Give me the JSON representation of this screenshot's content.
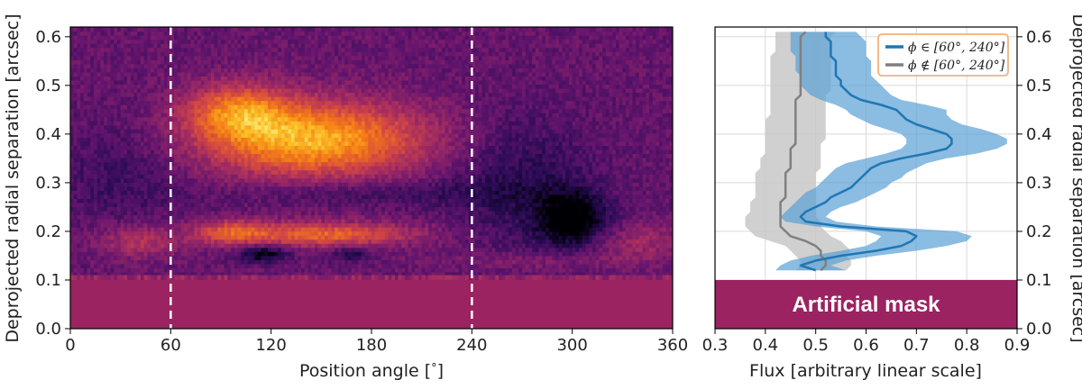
{
  "chart_data": [
    {
      "type": "heatmap",
      "title": "",
      "xlabel": "Position angle [$^\\circ$]",
      "xlabel_text": "Position angle [",
      "xlabel_unit": "°",
      "xlabel_close": "]",
      "ylabel": "Deprojected radial separation [arcsec]",
      "xlim": [
        0,
        360
      ],
      "ylim": [
        0,
        0.62
      ],
      "x_ticks": [
        "0",
        "60",
        "120",
        "180",
        "240",
        "300",
        "360"
      ],
      "y_ticks": [
        "0.0",
        "0.1",
        "0.2",
        "0.3",
        "0.4",
        "0.5",
        "0.6"
      ],
      "colormap": "inferno",
      "dashed_lines_at_x": [
        60,
        240
      ],
      "dashed_line_color": "#ffffff",
      "mask_below_y": 0.1,
      "features": [
        {
          "name": "bright_ring",
          "x_range": [
            60,
            240
          ],
          "y_center": 0.39,
          "intensity": 1.0
        },
        {
          "name": "inner_ring",
          "x_range": [
            60,
            240
          ],
          "y_center": 0.195,
          "intensity": 0.85
        },
        {
          "name": "dark_spot",
          "x_center": 300,
          "y_center": 0.225,
          "intensity": 0.0
        },
        {
          "name": "dark_spot",
          "x_center": 115,
          "y_center": 0.155,
          "intensity": 0.0
        }
      ]
    },
    {
      "type": "line",
      "title": "",
      "xlabel": "Flux [arbitrary linear scale]",
      "ylabel": "Deprojected radial separation [arcsec]",
      "ylabel_side": "right",
      "xlim": [
        0.3,
        0.9
      ],
      "ylim": [
        0,
        0.62
      ],
      "x_ticks": [
        "0.3",
        "0.4",
        "0.5",
        "0.6",
        "0.7",
        "0.8",
        "0.9"
      ],
      "y_ticks": [
        "0.0",
        "0.1",
        "0.2",
        "0.3",
        "0.4",
        "0.5",
        "0.6"
      ],
      "grid": true,
      "legend_position": "top-right",
      "legend_border_color": "#f4a460",
      "mask": {
        "label": "Artificial mask",
        "y_range": [
          0,
          0.1
        ],
        "color": "#9b2361"
      },
      "series": [
        {
          "name": "ϕ ∈ [60°, 240°]",
          "color": "#1f77b4",
          "band_color": "#5a9fd4",
          "y": [
            0.12,
            0.13,
            0.14,
            0.15,
            0.16,
            0.17,
            0.18,
            0.19,
            0.2,
            0.21,
            0.22,
            0.23,
            0.24,
            0.25,
            0.26,
            0.27,
            0.28,
            0.29,
            0.3,
            0.31,
            0.32,
            0.33,
            0.34,
            0.35,
            0.36,
            0.37,
            0.38,
            0.39,
            0.4,
            0.41,
            0.42,
            0.43,
            0.44,
            0.45,
            0.46,
            0.47,
            0.48,
            0.49,
            0.5,
            0.51,
            0.52,
            0.53,
            0.54,
            0.55,
            0.56,
            0.57,
            0.58,
            0.59,
            0.6,
            0.61
          ],
          "x": [
            0.5,
            0.47,
            0.5,
            0.55,
            0.62,
            0.67,
            0.69,
            0.7,
            0.68,
            0.55,
            0.48,
            0.47,
            0.48,
            0.5,
            0.52,
            0.53,
            0.55,
            0.57,
            0.58,
            0.59,
            0.6,
            0.61,
            0.63,
            0.67,
            0.72,
            0.76,
            0.77,
            0.77,
            0.76,
            0.73,
            0.7,
            0.68,
            0.67,
            0.66,
            0.63,
            0.59,
            0.57,
            0.56,
            0.55,
            0.55,
            0.54,
            0.54,
            0.54,
            0.54,
            0.53,
            0.53,
            0.53,
            0.53,
            0.52,
            0.52
          ],
          "x_low": [
            0.42,
            0.43,
            0.45,
            0.49,
            0.55,
            0.6,
            0.62,
            0.63,
            0.6,
            0.5,
            0.44,
            0.43,
            0.44,
            0.45,
            0.46,
            0.47,
            0.48,
            0.5,
            0.51,
            0.52,
            0.53,
            0.54,
            0.56,
            0.6,
            0.64,
            0.67,
            0.68,
            0.68,
            0.67,
            0.64,
            0.61,
            0.59,
            0.57,
            0.56,
            0.54,
            0.51,
            0.49,
            0.48,
            0.47,
            0.47,
            0.47,
            0.46,
            0.46,
            0.46,
            0.46,
            0.45,
            0.45,
            0.45,
            0.45,
            0.45
          ],
          "x_high": [
            0.56,
            0.53,
            0.56,
            0.62,
            0.7,
            0.76,
            0.8,
            0.81,
            0.78,
            0.62,
            0.54,
            0.52,
            0.53,
            0.55,
            0.58,
            0.6,
            0.62,
            0.64,
            0.65,
            0.67,
            0.68,
            0.7,
            0.72,
            0.76,
            0.82,
            0.86,
            0.88,
            0.88,
            0.86,
            0.83,
            0.79,
            0.77,
            0.76,
            0.76,
            0.72,
            0.67,
            0.65,
            0.64,
            0.63,
            0.62,
            0.61,
            0.61,
            0.61,
            0.61,
            0.6,
            0.6,
            0.6,
            0.6,
            0.59,
            0.58
          ]
        },
        {
          "name": "ϕ ∉ [60°, 240°]",
          "color": "#808080",
          "band_color": "#c8c8c8",
          "y": [
            0.12,
            0.13,
            0.14,
            0.15,
            0.16,
            0.17,
            0.18,
            0.19,
            0.2,
            0.21,
            0.22,
            0.23,
            0.24,
            0.25,
            0.26,
            0.27,
            0.28,
            0.29,
            0.3,
            0.31,
            0.32,
            0.33,
            0.34,
            0.35,
            0.36,
            0.37,
            0.38,
            0.39,
            0.4,
            0.41,
            0.42,
            0.43,
            0.44,
            0.45,
            0.46,
            0.47,
            0.48,
            0.49,
            0.5,
            0.51,
            0.52,
            0.53,
            0.54,
            0.55,
            0.56,
            0.57,
            0.58,
            0.59,
            0.6,
            0.61
          ],
          "x": [
            0.51,
            0.52,
            0.52,
            0.51,
            0.51,
            0.5,
            0.48,
            0.45,
            0.44,
            0.43,
            0.43,
            0.43,
            0.43,
            0.43,
            0.43,
            0.44,
            0.44,
            0.44,
            0.44,
            0.44,
            0.44,
            0.45,
            0.45,
            0.45,
            0.45,
            0.45,
            0.46,
            0.46,
            0.46,
            0.46,
            0.46,
            0.46,
            0.46,
            0.46,
            0.46,
            0.46,
            0.47,
            0.47,
            0.47,
            0.47,
            0.47,
            0.47,
            0.47,
            0.47,
            0.47,
            0.47,
            0.47,
            0.47,
            0.47,
            0.48
          ],
          "x_low": [
            0.46,
            0.47,
            0.47,
            0.46,
            0.45,
            0.44,
            0.41,
            0.38,
            0.37,
            0.36,
            0.36,
            0.36,
            0.37,
            0.37,
            0.37,
            0.38,
            0.38,
            0.38,
            0.38,
            0.38,
            0.38,
            0.39,
            0.39,
            0.39,
            0.4,
            0.4,
            0.4,
            0.4,
            0.4,
            0.4,
            0.4,
            0.4,
            0.41,
            0.41,
            0.41,
            0.41,
            0.41,
            0.41,
            0.41,
            0.41,
            0.41,
            0.41,
            0.41,
            0.41,
            0.41,
            0.42,
            0.42,
            0.42,
            0.42,
            0.42
          ],
          "x_high": [
            0.56,
            0.57,
            0.57,
            0.56,
            0.57,
            0.56,
            0.55,
            0.53,
            0.52,
            0.51,
            0.51,
            0.5,
            0.5,
            0.5,
            0.5,
            0.5,
            0.5,
            0.5,
            0.5,
            0.5,
            0.5,
            0.51,
            0.51,
            0.51,
            0.51,
            0.51,
            0.51,
            0.52,
            0.52,
            0.52,
            0.52,
            0.52,
            0.52,
            0.52,
            0.52,
            0.52,
            0.52,
            0.53,
            0.53,
            0.53,
            0.53,
            0.53,
            0.53,
            0.53,
            0.53,
            0.53,
            0.53,
            0.53,
            0.53,
            0.54
          ]
        }
      ]
    }
  ]
}
